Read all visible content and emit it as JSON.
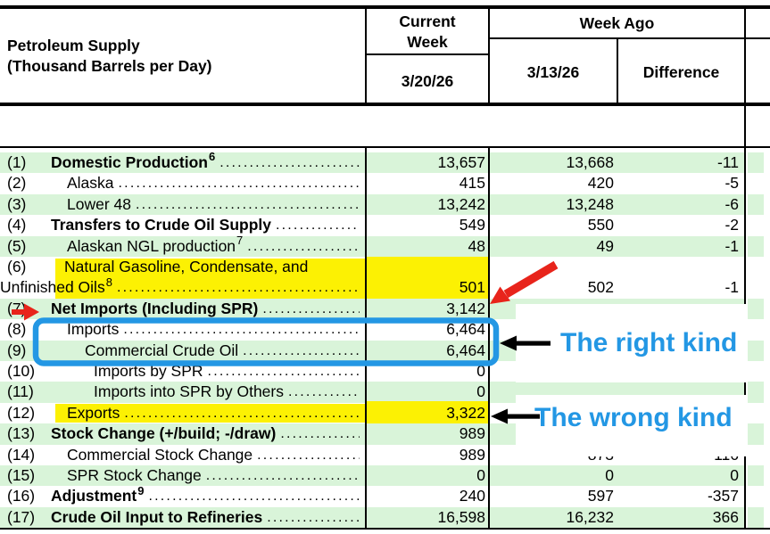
{
  "header": {
    "title1": "Petroleum Supply",
    "title2": "(Thousand Barrels per Day)",
    "current_week_line1": "Current",
    "current_week_line2": "Week",
    "current_date": "3/20/26",
    "week_ago": "Week Ago",
    "week_ago_date": "3/13/26",
    "difference": "Difference"
  },
  "table": {
    "rows": [
      {
        "num": "(1)",
        "label": "Domestic Production",
        "sup": "6",
        "bold": true,
        "indent": 0,
        "current": "13,657",
        "week_ago": "13,668",
        "diff": "-11"
      },
      {
        "num": "(2)",
        "label": "Alaska",
        "bold": false,
        "indent": 1,
        "current": "415",
        "week_ago": "420",
        "diff": "-5"
      },
      {
        "num": "(3)",
        "label": "Lower 48",
        "bold": false,
        "indent": 1,
        "current": "13,242",
        "week_ago": "13,248",
        "diff": "-6"
      },
      {
        "num": "(4)",
        "label": "Transfers to Crude Oil Supply",
        "bold": true,
        "indent": 0,
        "current": "549",
        "week_ago": "550",
        "diff": "-2"
      },
      {
        "num": "(5)",
        "label": "Alaskan NGL production",
        "sup": "7",
        "bold": false,
        "indent": 1,
        "current": "48",
        "week_ago": "49",
        "diff": "-1"
      },
      {
        "num": "(6)",
        "label": "Natural Gasoline, Condensate, and Unfinished Oils",
        "label1": "Natural Gasoline, Condensate, and",
        "label2": "Unfinished Oils",
        "sup": "8",
        "two_line": true,
        "highlight": true,
        "bold": false,
        "indent": 1,
        "current": "501",
        "week_ago": "502",
        "diff": "-1"
      },
      {
        "num": "(7)",
        "label": "Net Imports (Including SPR)",
        "bold": true,
        "indent": 0,
        "current": "3,142",
        "week_ago": "",
        "diff": ""
      },
      {
        "num": "(8)",
        "label": "Imports",
        "bold": false,
        "indent": 1,
        "current": "6,464",
        "week_ago": "",
        "diff": ""
      },
      {
        "num": "(9)",
        "label": "Commercial Crude Oil",
        "bold": false,
        "indent": 2,
        "current": "6,464",
        "week_ago": "",
        "diff": ""
      },
      {
        "num": "(10)",
        "label": "Imports by SPR",
        "bold": false,
        "indent": 3,
        "current": "0",
        "week_ago": "",
        "diff": ""
      },
      {
        "num": "(11)",
        "label": "Imports into SPR by Others",
        "bold": false,
        "indent": 3,
        "current": "0",
        "week_ago": "",
        "diff": ""
      },
      {
        "num": "(12)",
        "label": "Exports",
        "highlight": true,
        "bold": false,
        "indent": 1,
        "current": "3,322",
        "week_ago": "",
        "diff": ""
      },
      {
        "num": "(13)",
        "label": "Stock Change (+/build; -/draw)",
        "bold": true,
        "indent": 0,
        "current": "989",
        "week_ago": "",
        "diff": ""
      },
      {
        "num": "(14)",
        "label": "Commercial Stock Change",
        "bold": false,
        "indent": 1,
        "current": "989",
        "week_ago": "873",
        "diff": "116"
      },
      {
        "num": "(15)",
        "label": "SPR Stock Change",
        "bold": false,
        "indent": 1,
        "current": "0",
        "week_ago": "0",
        "diff": "0"
      },
      {
        "num": "(16)",
        "label": "Adjustment",
        "sup": "9",
        "bold": true,
        "indent": 0,
        "current": "240",
        "week_ago": "597",
        "diff": "-357"
      },
      {
        "num": "(17)",
        "label": "Crude Oil Input to Refineries",
        "bold": true,
        "indent": 0,
        "current": "16,598",
        "week_ago": "16,232",
        "diff": "366"
      }
    ]
  },
  "annotations": {
    "right_label": "The right kind",
    "wrong_label": "The wrong kind"
  },
  "colors": {
    "stripe_green": "#d9f4d9",
    "highlight_yellow": "#fcf103",
    "annotation_blue": "#2397e4",
    "annotation_red": "#e8241b",
    "overlap_olive": "#e4ee7c"
  }
}
